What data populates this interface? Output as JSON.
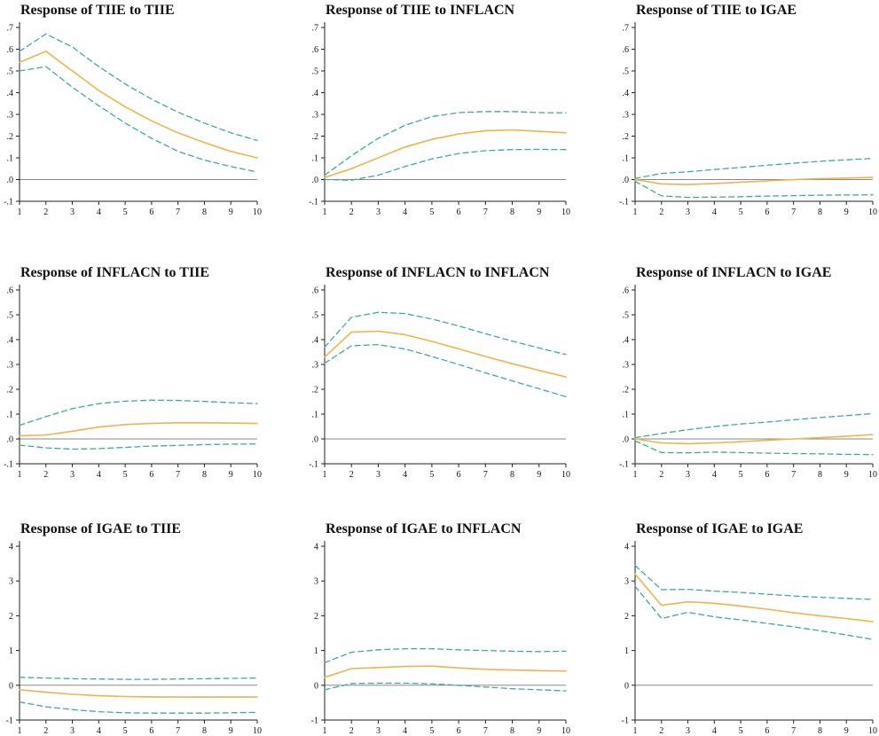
{
  "figure": {
    "background": "#ffffff",
    "colors": {
      "center_line": "#EDB44F",
      "band_line": "#44A69E",
      "zero_line": "#8a8a8a",
      "axis": "#222222",
      "title": "#111111"
    }
  },
  "chart_data": [
    {
      "type": "line",
      "title": "Response of TIIE to TIIE",
      "x": [
        1,
        2,
        3,
        4,
        5,
        6,
        7,
        8,
        9,
        10
      ],
      "xtick_labels": [
        "1",
        "2",
        "3",
        "4",
        "5",
        "6",
        "7",
        "8",
        "9",
        "10"
      ],
      "ylim": [
        -0.1,
        0.7
      ],
      "ytick_values": [
        0.7,
        0.6,
        0.5,
        0.4,
        0.3,
        0.2,
        0.1,
        0.0,
        -0.1
      ],
      "ytick_labels": [
        ".7",
        ".6",
        ".5",
        ".4",
        ".3",
        ".2",
        ".1",
        ".0",
        "-.1"
      ],
      "grid": false,
      "legend": "none",
      "series": [
        {
          "name": "response",
          "style": "solid",
          "values": [
            0.54,
            0.59,
            0.5,
            0.41,
            0.335,
            0.27,
            0.215,
            0.17,
            0.13,
            0.1
          ]
        },
        {
          "name": "upper-band",
          "style": "dashed",
          "values": [
            0.59,
            0.67,
            0.61,
            0.52,
            0.44,
            0.37,
            0.31,
            0.26,
            0.215,
            0.18
          ]
        },
        {
          "name": "lower-band",
          "style": "dashed",
          "values": [
            0.5,
            0.52,
            0.425,
            0.34,
            0.26,
            0.19,
            0.13,
            0.09,
            0.06,
            0.035
          ]
        }
      ]
    },
    {
      "type": "line",
      "title": "Response of TIIE to INFLACN",
      "x": [
        1,
        2,
        3,
        4,
        5,
        6,
        7,
        8,
        9,
        10
      ],
      "xtick_labels": [
        "1",
        "2",
        "3",
        "4",
        "5",
        "6",
        "7",
        "8",
        "9",
        "10"
      ],
      "ylim": [
        -0.1,
        0.7
      ],
      "ytick_values": [
        0.7,
        0.6,
        0.5,
        0.4,
        0.3,
        0.2,
        0.1,
        0.0,
        -0.1
      ],
      "ytick_labels": [
        ".7",
        ".6",
        ".5",
        ".4",
        ".3",
        ".2",
        ".1",
        ".0",
        "-.1"
      ],
      "grid": false,
      "legend": "none",
      "series": [
        {
          "name": "response",
          "style": "solid",
          "values": [
            0.01,
            0.05,
            0.1,
            0.15,
            0.185,
            0.21,
            0.225,
            0.228,
            0.222,
            0.215
          ]
        },
        {
          "name": "upper-band",
          "style": "dashed",
          "values": [
            0.02,
            0.11,
            0.19,
            0.25,
            0.29,
            0.308,
            0.313,
            0.313,
            0.308,
            0.307
          ]
        },
        {
          "name": "lower-band",
          "style": "dashed",
          "values": [
            0.0,
            -0.003,
            0.02,
            0.06,
            0.095,
            0.12,
            0.133,
            0.138,
            0.139,
            0.138
          ]
        }
      ]
    },
    {
      "type": "line",
      "title": "Response of TIIE to IGAE",
      "x": [
        1,
        2,
        3,
        4,
        5,
        6,
        7,
        8,
        9,
        10
      ],
      "xtick_labels": [
        "1",
        "2",
        "3",
        "4",
        "5",
        "6",
        "7",
        "8",
        "9",
        "10"
      ],
      "ylim": [
        -0.1,
        0.7
      ],
      "ytick_values": [
        0.7,
        0.6,
        0.5,
        0.4,
        0.3,
        0.2,
        0.1,
        0.0,
        -0.1
      ],
      "ytick_labels": [
        ".7",
        ".6",
        ".5",
        ".4",
        ".3",
        ".2",
        ".1",
        ".0",
        "-.1"
      ],
      "grid": false,
      "legend": "none",
      "series": [
        {
          "name": "response",
          "style": "solid",
          "values": [
            0.0,
            -0.02,
            -0.023,
            -0.018,
            -0.012,
            -0.006,
            0.0,
            0.004,
            0.007,
            0.01
          ]
        },
        {
          "name": "upper-band",
          "style": "dashed",
          "values": [
            0.005,
            0.028,
            0.036,
            0.046,
            0.056,
            0.066,
            0.075,
            0.084,
            0.091,
            0.097
          ]
        },
        {
          "name": "lower-band",
          "style": "dashed",
          "values": [
            -0.008,
            -0.075,
            -0.082,
            -0.081,
            -0.079,
            -0.076,
            -0.074,
            -0.072,
            -0.071,
            -0.07
          ]
        }
      ]
    },
    {
      "type": "line",
      "title": "Response of INFLACN to TIIE",
      "x": [
        1,
        2,
        3,
        4,
        5,
        6,
        7,
        8,
        9,
        10
      ],
      "xtick_labels": [
        "1",
        "2",
        "3",
        "4",
        "5",
        "6",
        "7",
        "8",
        "9",
        "10"
      ],
      "ylim": [
        -0.1,
        0.6
      ],
      "ytick_values": [
        0.6,
        0.5,
        0.4,
        0.3,
        0.2,
        0.1,
        0.0,
        -0.1
      ],
      "ytick_labels": [
        ".6",
        ".5",
        ".4",
        ".3",
        ".2",
        ".1",
        ".0",
        "-.1"
      ],
      "grid": false,
      "legend": "none",
      "series": [
        {
          "name": "response",
          "style": "solid",
          "values": [
            0.013,
            0.016,
            0.031,
            0.048,
            0.058,
            0.063,
            0.065,
            0.065,
            0.064,
            0.062
          ]
        },
        {
          "name": "upper-band",
          "style": "dashed",
          "values": [
            0.055,
            0.09,
            0.122,
            0.142,
            0.152,
            0.156,
            0.155,
            0.151,
            0.146,
            0.142
          ]
        },
        {
          "name": "lower-band",
          "style": "dashed",
          "values": [
            -0.025,
            -0.036,
            -0.041,
            -0.039,
            -0.034,
            -0.029,
            -0.026,
            -0.023,
            -0.021,
            -0.02
          ]
        }
      ]
    },
    {
      "type": "line",
      "title": "Response of INFLACN to INFLACN",
      "x": [
        1,
        2,
        3,
        4,
        5,
        6,
        7,
        8,
        9,
        10
      ],
      "xtick_labels": [
        "1",
        "2",
        "3",
        "4",
        "5",
        "6",
        "7",
        "8",
        "9",
        "10"
      ],
      "ylim": [
        -0.1,
        0.6
      ],
      "ytick_values": [
        0.6,
        0.5,
        0.4,
        0.3,
        0.2,
        0.1,
        0.0,
        -0.1
      ],
      "ytick_labels": [
        ".6",
        ".5",
        ".4",
        ".3",
        ".2",
        ".1",
        ".0",
        "-.1"
      ],
      "grid": false,
      "legend": "none",
      "series": [
        {
          "name": "response",
          "style": "solid",
          "values": [
            0.33,
            0.43,
            0.434,
            0.42,
            0.393,
            0.363,
            0.332,
            0.303,
            0.276,
            0.25
          ]
        },
        {
          "name": "upper-band",
          "style": "dashed",
          "values": [
            0.37,
            0.49,
            0.51,
            0.505,
            0.483,
            0.455,
            0.424,
            0.394,
            0.366,
            0.34
          ]
        },
        {
          "name": "lower-band",
          "style": "dashed",
          "values": [
            0.305,
            0.375,
            0.38,
            0.362,
            0.332,
            0.3,
            0.266,
            0.234,
            0.202,
            0.17
          ]
        }
      ]
    },
    {
      "type": "line",
      "title": "Response of INFLACN to IGAE",
      "x": [
        1,
        2,
        3,
        4,
        5,
        6,
        7,
        8,
        9,
        10
      ],
      "xtick_labels": [
        "1",
        "2",
        "3",
        "4",
        "5",
        "6",
        "7",
        "8",
        "9",
        "10"
      ],
      "ylim": [
        -0.1,
        0.6
      ],
      "ytick_values": [
        0.6,
        0.5,
        0.4,
        0.3,
        0.2,
        0.1,
        0.0,
        -0.1
      ],
      "ytick_labels": [
        ".6",
        ".5",
        ".4",
        ".3",
        ".2",
        ".1",
        ".0",
        "-.1"
      ],
      "grid": false,
      "legend": "none",
      "series": [
        {
          "name": "response",
          "style": "solid",
          "values": [
            0.0,
            -0.016,
            -0.019,
            -0.016,
            -0.011,
            -0.005,
            0.0,
            0.005,
            0.011,
            0.018
          ]
        },
        {
          "name": "upper-band",
          "style": "dashed",
          "values": [
            0.005,
            0.022,
            0.037,
            0.05,
            0.06,
            0.068,
            0.077,
            0.086,
            0.094,
            0.102
          ]
        },
        {
          "name": "lower-band",
          "style": "dashed",
          "values": [
            -0.008,
            -0.055,
            -0.056,
            -0.053,
            -0.055,
            -0.057,
            -0.059,
            -0.06,
            -0.062,
            -0.063
          ]
        }
      ]
    },
    {
      "type": "line",
      "title": "Response of IGAE to TIIE",
      "x": [
        1,
        2,
        3,
        4,
        5,
        6,
        7,
        8,
        9,
        10
      ],
      "xtick_labels": [
        "1",
        "2",
        "3",
        "4",
        "5",
        "6",
        "7",
        "8",
        "9",
        "10"
      ],
      "ylim": [
        -1,
        4
      ],
      "ytick_values": [
        4,
        3,
        2,
        1,
        0,
        -1
      ],
      "ytick_labels": [
        "4",
        "3",
        "2",
        "1",
        "0",
        "-1"
      ],
      "grid": false,
      "legend": "none",
      "series": [
        {
          "name": "response",
          "style": "solid",
          "values": [
            -0.13,
            -0.2,
            -0.26,
            -0.3,
            -0.325,
            -0.335,
            -0.34,
            -0.34,
            -0.34,
            -0.34
          ]
        },
        {
          "name": "upper-band",
          "style": "dashed",
          "values": [
            0.23,
            0.21,
            0.19,
            0.18,
            0.17,
            0.17,
            0.18,
            0.19,
            0.2,
            0.21
          ]
        },
        {
          "name": "lower-band",
          "style": "dashed",
          "values": [
            -0.48,
            -0.62,
            -0.7,
            -0.76,
            -0.79,
            -0.8,
            -0.8,
            -0.8,
            -0.79,
            -0.78
          ]
        }
      ]
    },
    {
      "type": "line",
      "title": "Response of IGAE to INFLACN",
      "x": [
        1,
        2,
        3,
        4,
        5,
        6,
        7,
        8,
        9,
        10
      ],
      "xtick_labels": [
        "1",
        "2",
        "3",
        "4",
        "5",
        "6",
        "7",
        "8",
        "9",
        "10"
      ],
      "ylim": [
        -1,
        4
      ],
      "ytick_values": [
        4,
        3,
        2,
        1,
        0,
        -1
      ],
      "ytick_labels": [
        "4",
        "3",
        "2",
        "1",
        "0",
        "-1"
      ],
      "grid": false,
      "legend": "none",
      "series": [
        {
          "name": "response",
          "style": "solid",
          "values": [
            0.23,
            0.48,
            0.51,
            0.54,
            0.55,
            0.5,
            0.46,
            0.44,
            0.42,
            0.41
          ]
        },
        {
          "name": "upper-band",
          "style": "dashed",
          "values": [
            0.65,
            0.95,
            1.02,
            1.05,
            1.05,
            1.02,
            1.0,
            0.98,
            0.97,
            0.98
          ]
        },
        {
          "name": "lower-band",
          "style": "dashed",
          "values": [
            -0.13,
            0.05,
            0.06,
            0.06,
            0.04,
            0.0,
            -0.05,
            -0.1,
            -0.13,
            -0.16
          ]
        }
      ]
    },
    {
      "type": "line",
      "title": "Response of IGAE to IGAE",
      "x": [
        1,
        2,
        3,
        4,
        5,
        6,
        7,
        8,
        9,
        10
      ],
      "xtick_labels": [
        "1",
        "2",
        "3",
        "4",
        "5",
        "6",
        "7",
        "8",
        "9",
        "10"
      ],
      "ylim": [
        -1,
        4
      ],
      "ytick_values": [
        4,
        3,
        2,
        1,
        0,
        -1
      ],
      "ytick_labels": [
        "4",
        "3",
        "2",
        "1",
        "0",
        "-1"
      ],
      "grid": false,
      "legend": "none",
      "series": [
        {
          "name": "response",
          "style": "solid",
          "values": [
            3.2,
            2.3,
            2.4,
            2.36,
            2.28,
            2.19,
            2.09,
            2.0,
            1.92,
            1.83
          ]
        },
        {
          "name": "upper-band",
          "style": "dashed",
          "values": [
            3.45,
            2.75,
            2.76,
            2.71,
            2.67,
            2.62,
            2.57,
            2.53,
            2.5,
            2.47
          ]
        },
        {
          "name": "lower-band",
          "style": "dashed",
          "values": [
            2.85,
            1.92,
            2.1,
            1.97,
            1.88,
            1.78,
            1.68,
            1.57,
            1.45,
            1.32
          ]
        }
      ]
    }
  ]
}
